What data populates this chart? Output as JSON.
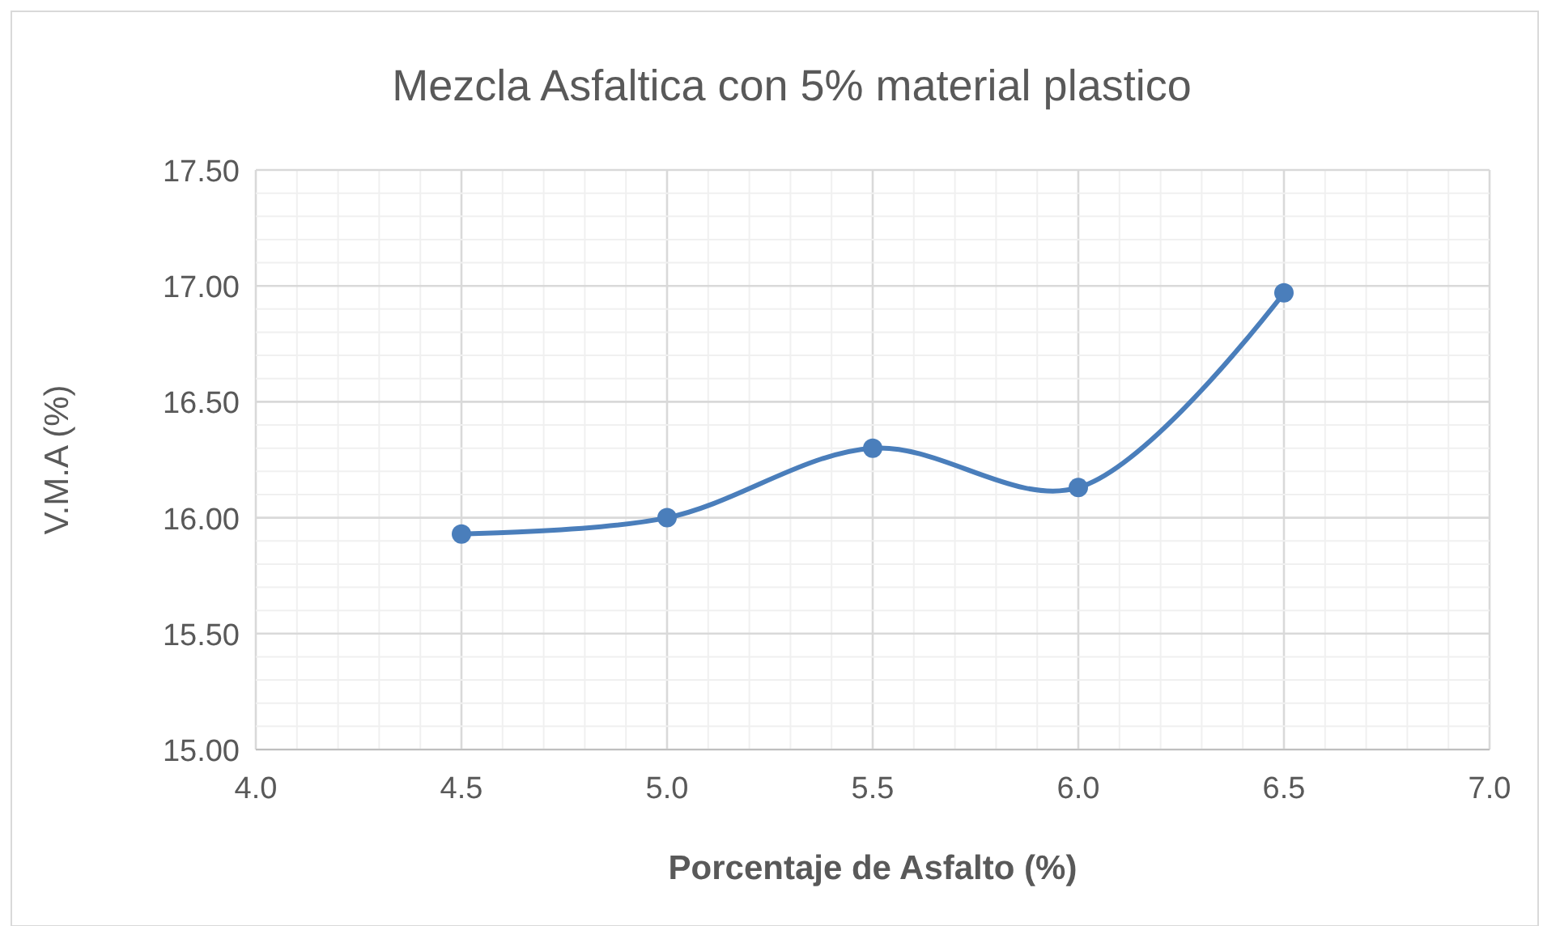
{
  "chart_data": {
    "type": "line",
    "title": "Mezcla Asfaltica con 5% material plastico",
    "xlabel": "Porcentaje de Asfalto (%)",
    "ylabel": "V.M.A (%)",
    "x": [
      4.5,
      5.0,
      5.5,
      6.0,
      6.5
    ],
    "series": [
      {
        "color": "#4a7ebb",
        "values": [
          15.93,
          16.0,
          16.3,
          16.13,
          16.97
        ]
      }
    ],
    "xlim": [
      4.0,
      7.0
    ],
    "xticks": [
      {
        "value": 4.0,
        "label": "4.0"
      },
      {
        "value": 4.1,
        "label": null
      },
      {
        "value": 4.2,
        "label": null
      },
      {
        "value": 4.3,
        "label": null
      },
      {
        "value": 4.4,
        "label": null
      },
      {
        "value": 4.5,
        "label": "4.5"
      },
      {
        "value": 4.6,
        "label": null
      },
      {
        "value": 4.7,
        "label": null
      },
      {
        "value": 4.8,
        "label": null
      },
      {
        "value": 4.9,
        "label": null
      },
      {
        "value": 5.0,
        "label": "5.0"
      },
      {
        "value": 5.1,
        "label": null
      },
      {
        "value": 5.2,
        "label": null
      },
      {
        "value": 5.3,
        "label": null
      },
      {
        "value": 5.4,
        "label": null
      },
      {
        "value": 5.5,
        "label": "5.5"
      },
      {
        "value": 5.6,
        "label": null
      },
      {
        "value": 5.7,
        "label": null
      },
      {
        "value": 5.8,
        "label": null
      },
      {
        "value": 5.9,
        "label": null
      },
      {
        "value": 6.0,
        "label": "6.0"
      },
      {
        "value": 6.1,
        "label": null
      },
      {
        "value": 6.2,
        "label": null
      },
      {
        "value": 6.3,
        "label": null
      },
      {
        "value": 6.4,
        "label": null
      },
      {
        "value": 6.5,
        "label": "6.5"
      },
      {
        "value": 6.6,
        "label": null
      },
      {
        "value": 6.7,
        "label": null
      },
      {
        "value": 6.8,
        "label": null
      },
      {
        "value": 6.9,
        "label": null
      },
      {
        "value": 7.0,
        "label": "7.0"
      }
    ],
    "ylim": [
      15.0,
      17.5
    ],
    "yticks": [
      {
        "value": 15.0,
        "label": "15.00"
      },
      {
        "value": 15.1,
        "label": null
      },
      {
        "value": 15.2,
        "label": null
      },
      {
        "value": 15.3,
        "label": null
      },
      {
        "value": 15.4,
        "label": null
      },
      {
        "value": 15.5,
        "label": "15.50"
      },
      {
        "value": 15.6,
        "label": null
      },
      {
        "value": 15.7,
        "label": null
      },
      {
        "value": 15.8,
        "label": null
      },
      {
        "value": 15.9,
        "label": null
      },
      {
        "value": 16.0,
        "label": "16.00"
      },
      {
        "value": 16.1,
        "label": null
      },
      {
        "value": 16.2,
        "label": null
      },
      {
        "value": 16.3,
        "label": null
      },
      {
        "value": 16.4,
        "label": null
      },
      {
        "value": 16.5,
        "label": "16.50"
      },
      {
        "value": 16.6,
        "label": null
      },
      {
        "value": 16.7,
        "label": null
      },
      {
        "value": 16.8,
        "label": null
      },
      {
        "value": 16.9,
        "label": null
      },
      {
        "value": 17.0,
        "label": "17.00"
      },
      {
        "value": 17.1,
        "label": null
      },
      {
        "value": 17.2,
        "label": null
      },
      {
        "value": 17.3,
        "label": null
      },
      {
        "value": 17.4,
        "label": null
      },
      {
        "value": 17.5,
        "label": "17.50"
      }
    ],
    "grid": true,
    "marker": "circle",
    "line_style": "solid"
  }
}
